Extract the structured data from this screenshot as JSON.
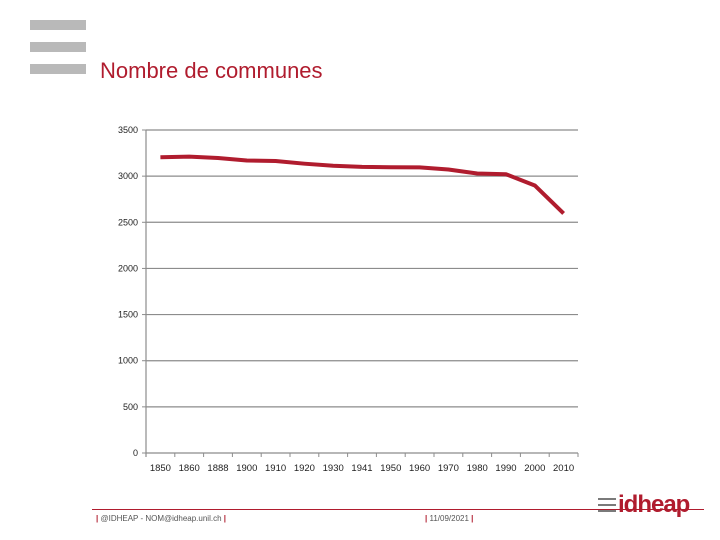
{
  "page": {
    "title": "Nombre de communes",
    "footer_left": "@IDHEAP - NOM@idheap.unil.ch",
    "footer_date": "11/09/2021",
    "logo_text": "idheap"
  },
  "colors": {
    "accent": "#b01c2e",
    "bars": "#b9b9b9",
    "grid": "#8c8c8c"
  },
  "chart_data": {
    "type": "line",
    "title": "Nombre de communes",
    "categories": [
      "1850",
      "1860",
      "1888",
      "1900",
      "1910",
      "1920",
      "1930",
      "1941",
      "1950",
      "1960",
      "1970",
      "1980",
      "1990",
      "2000",
      "2010"
    ],
    "series": [
      {
        "values": [
          3205,
          3211,
          3196,
          3170,
          3164,
          3135,
          3112,
          3101,
          3097,
          3095,
          3072,
          3029,
          3021,
          2899,
          2596
        ]
      }
    ],
    "y_ticks": [
      0,
      500,
      1000,
      1500,
      2000,
      2500,
      3000,
      3500
    ],
    "ylim": [
      0,
      3500
    ],
    "grid": true,
    "legend": "none"
  }
}
